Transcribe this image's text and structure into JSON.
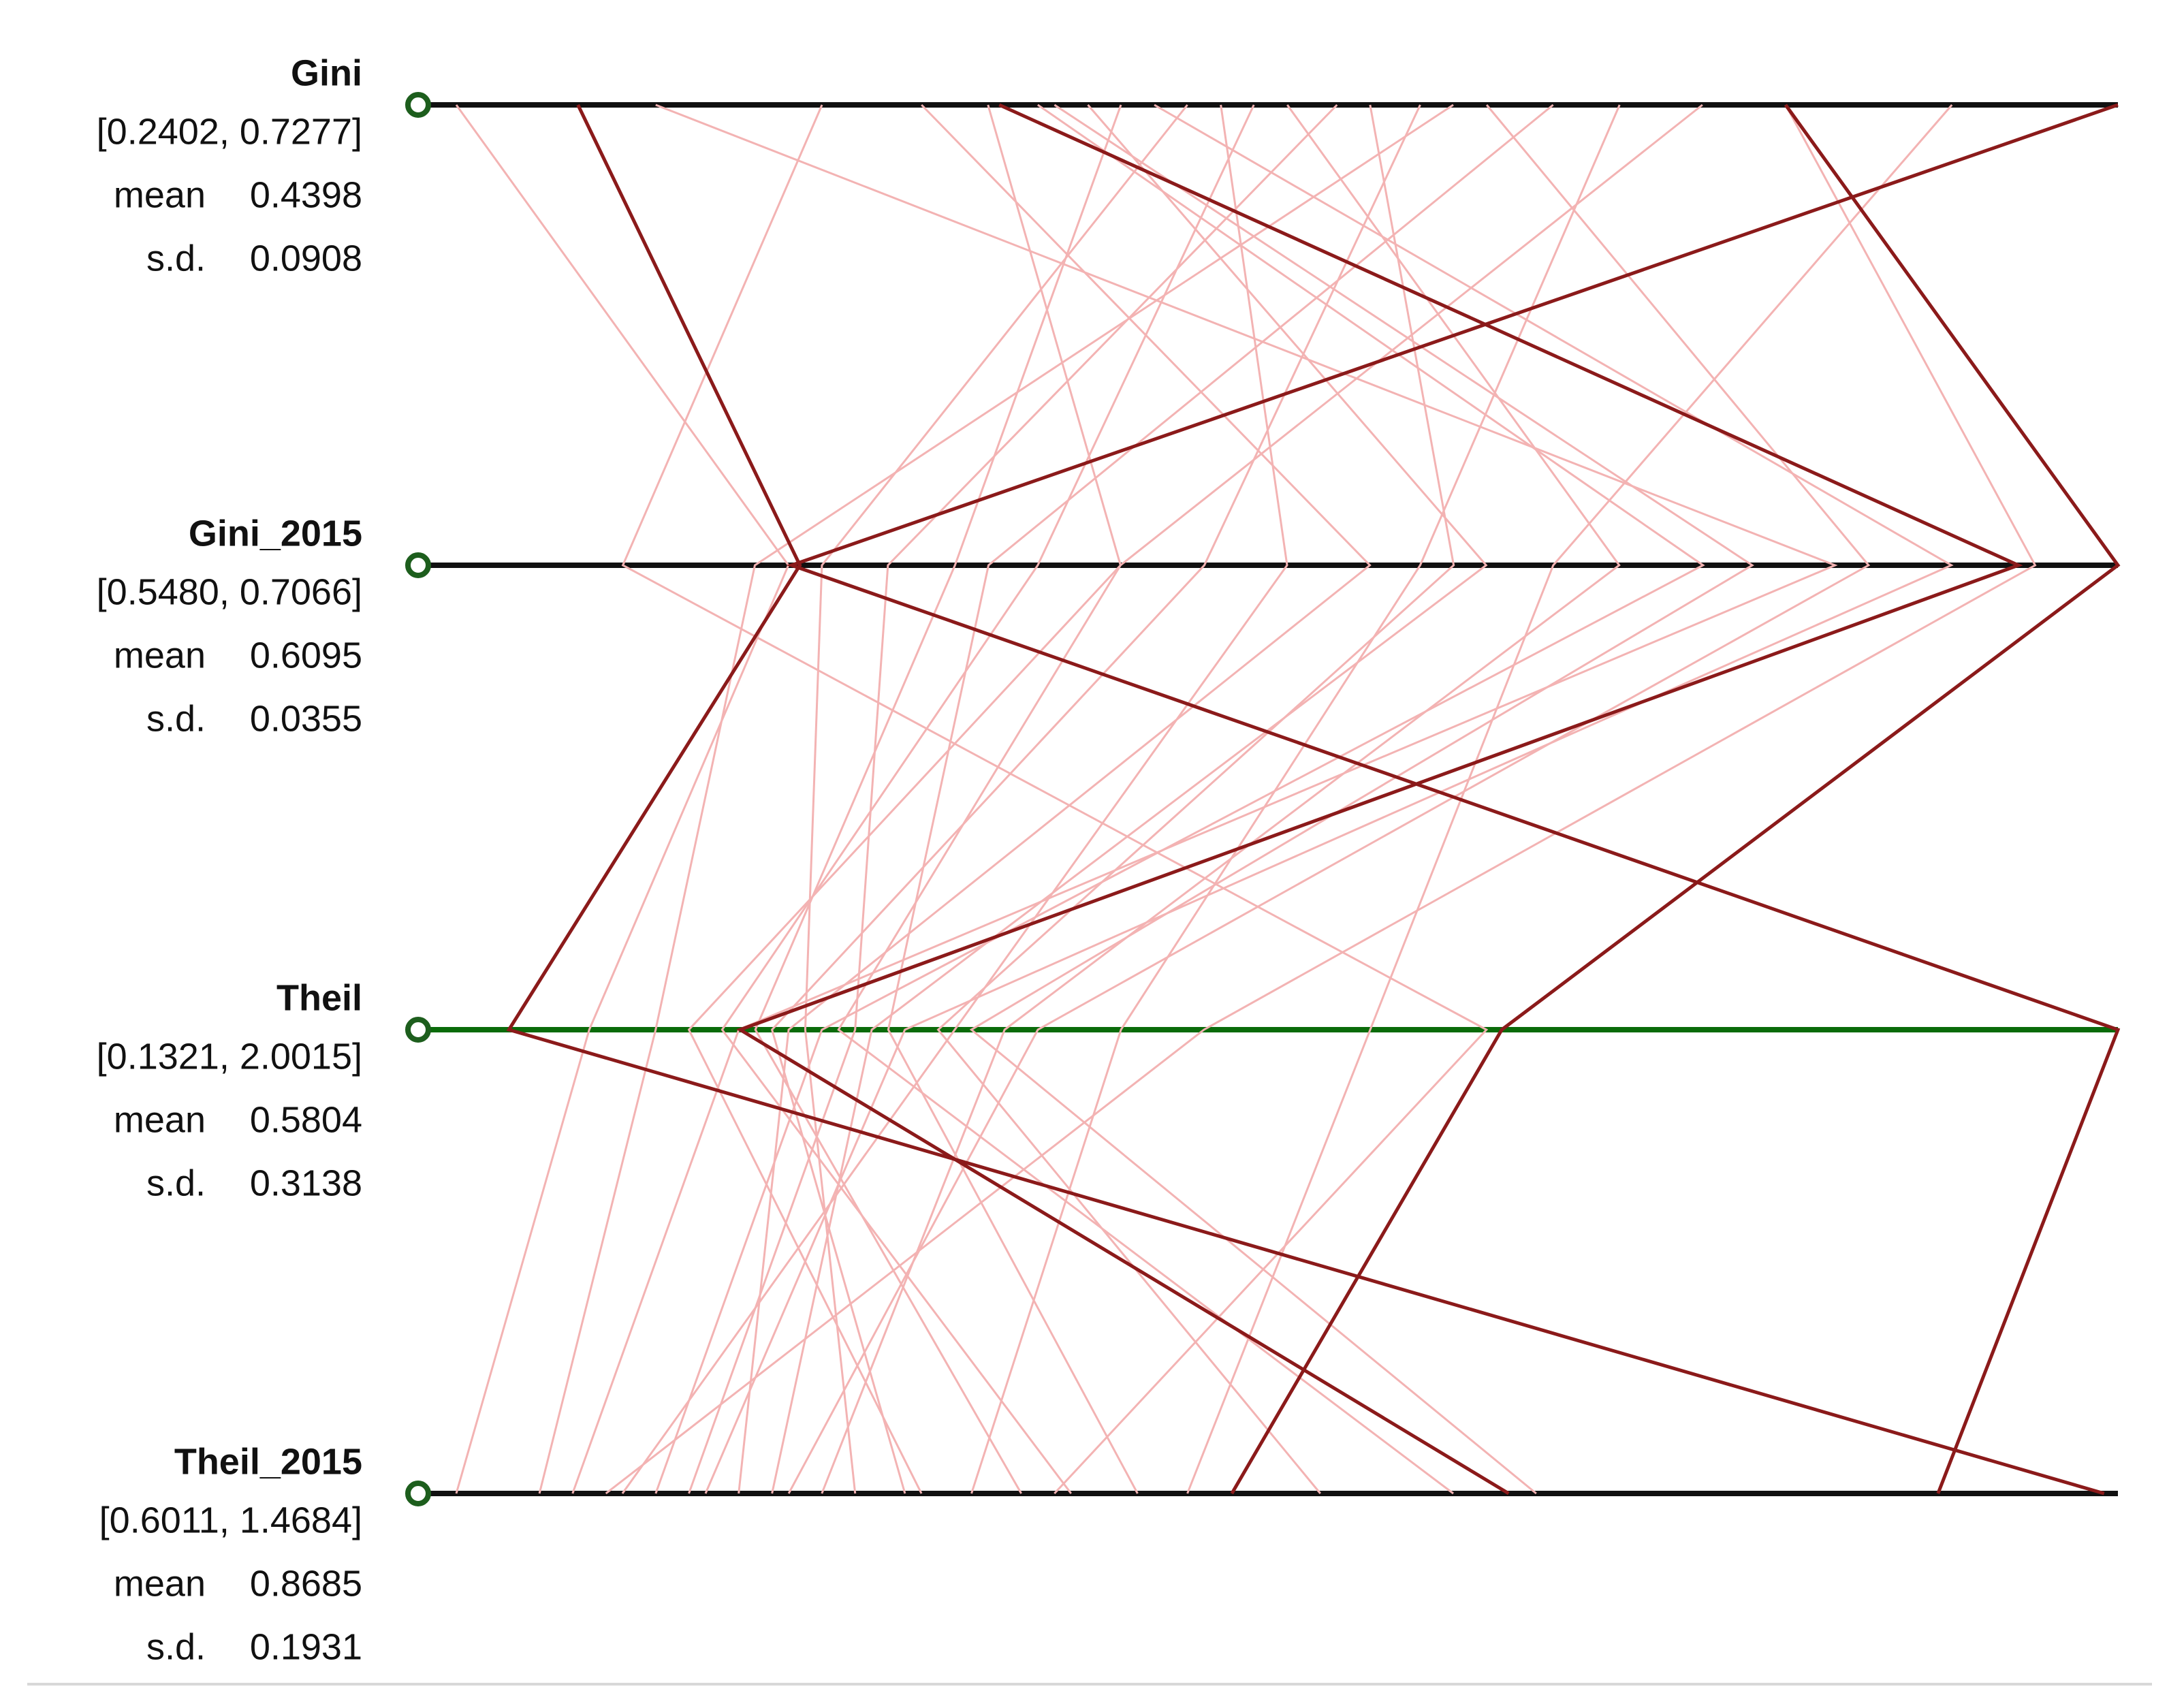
{
  "chart_data": {
    "type": "parallel",
    "axes": [
      {
        "name": "Gini",
        "range_label": "[0.2402, 0.7277]",
        "lim": [
          0.2402,
          0.7277
        ],
        "mean_label": "mean",
        "mean": "0.4398",
        "sd_label": "s.d.",
        "sd": "0.0908",
        "color": "#111111"
      },
      {
        "name": "Gini_2015",
        "range_label": "[0.5480, 0.7066]",
        "lim": [
          0.548,
          0.7066
        ],
        "mean_label": "mean",
        "mean": "0.6095",
        "sd_label": "s.d.",
        "sd": "0.0355",
        "color": "#111111"
      },
      {
        "name": "Theil",
        "range_label": "[0.1321, 2.0015]",
        "lim": [
          0.1321,
          2.0015
        ],
        "mean_label": "mean",
        "mean": "0.5804",
        "sd_label": "s.d.",
        "sd": "0.3138",
        "color": "#0a6b0a"
      },
      {
        "name": "Theil_2015",
        "range_label": "[0.6011, 1.4684]",
        "lim": [
          0.6011,
          1.4684
        ],
        "mean_label": "mean",
        "mean": "0.8685",
        "sd_label": "s.d.",
        "sd": "0.1931",
        "color": "#111111"
      }
    ],
    "series": [
      {
        "color": "#f3b3b3",
        "values": [
          0.2402,
          0.5797,
          0.2817,
          0.6011
        ]
      },
      {
        "color": "#f3b3b3",
        "values": [
          0.2987,
          0.6796,
          0.4499,
          0.6618
        ]
      },
      {
        "color": "#f3b3b3",
        "values": [
          0.3767,
          0.6352,
          0.506,
          0.7485
        ]
      },
      {
        "color": "#f3b3b3",
        "values": [
          0.3962,
          0.6114,
          0.3938,
          0.8439
        ]
      },
      {
        "color": "#f3b3b3",
        "values": [
          0.4108,
          0.667,
          0.5434,
          0.7052
        ]
      },
      {
        "color": "#f3b3b3",
        "values": [
          0.4255,
          0.6463,
          0.5995,
          0.7659
        ]
      },
      {
        "color": "#f3b3b3",
        "values": [
          0.4352,
          0.5956,
          0.4686,
          0.896
        ]
      },
      {
        "color": "#f3b3b3",
        "values": [
          0.445,
          0.6907,
          0.6368,
          0.7312
        ]
      },
      {
        "color": "#f3b3b3",
        "values": [
          0.4547,
          0.5829,
          0.5247,
          0.8093
        ]
      },
      {
        "color": "#f3b3b3",
        "values": [
          0.4645,
          0.6273,
          0.6929,
          0.6878
        ]
      },
      {
        "color": "#f3b3b3",
        "values": [
          0.4742,
          0.6035,
          0.4312,
          0.922
        ]
      },
      {
        "color": "#f3b3b3",
        "values": [
          0.484,
          0.659,
          0.749,
          0.7919
        ]
      },
      {
        "color": "#f3b3b3",
        "values": [
          0.4986,
          0.5892,
          0.5808,
          0.7225
        ]
      },
      {
        "color": "#f3b3b3",
        "values": [
          0.5083,
          0.6432,
          0.6742,
          1.0521
        ]
      },
      {
        "color": "#f3b3b3",
        "values": [
          0.523,
          0.6194,
          0.4873,
          0.8353
        ]
      },
      {
        "color": "#f3b3b3",
        "values": [
          0.5425,
          0.6828,
          0.7864,
          0.7746
        ]
      },
      {
        "color": "#f3b3b3",
        "values": [
          0.562,
          0.5988,
          0.6181,
          0.9567
        ]
      },
      {
        "color": "#f3b3b3",
        "values": [
          0.5815,
          0.64,
          0.8799,
          0.87
        ]
      },
      {
        "color": "#f3b3b3",
        "values": [
          0.6058,
          0.6114,
          0.5621,
          1.1215
        ]
      },
      {
        "color": "#f3b3b3",
        "values": [
          0.6302,
          0.6987,
          0.9733,
          0.6792
        ]
      },
      {
        "color": "#f3b3b3",
        "values": [
          0.679,
          0.6527,
          1.1603,
          0.9827
        ]
      },
      {
        "color": "#f3b3b3",
        "values": [
          0.3475,
          0.5639,
          1.2911,
          0.9133
        ]
      },
      {
        "color": "#f3b3b3",
        "values": [
          0.5327,
          0.5765,
          0.3564,
          0.6445
        ]
      },
      {
        "color": "#f3b3b3",
        "values": [
          0.4157,
          0.6717,
          0.7116,
          1.1648
        ]
      },
      {
        "color": "#8b1a1a",
        "values": [
          0.2759,
          0.5808,
          0.1913,
          1.4612
        ]
      },
      {
        "color": "#8b1a1a",
        "values": [
          0.3995,
          0.6971,
          0.4514,
          1.1504
        ]
      },
      {
        "color": "#8b1a1a",
        "values": [
          0.7277,
          0.58,
          2.0015,
          1.3745
        ]
      },
      {
        "color": "#8b1a1a",
        "values": [
          0.6302,
          0.7066,
          1.3083,
          1.0059
        ]
      }
    ]
  }
}
